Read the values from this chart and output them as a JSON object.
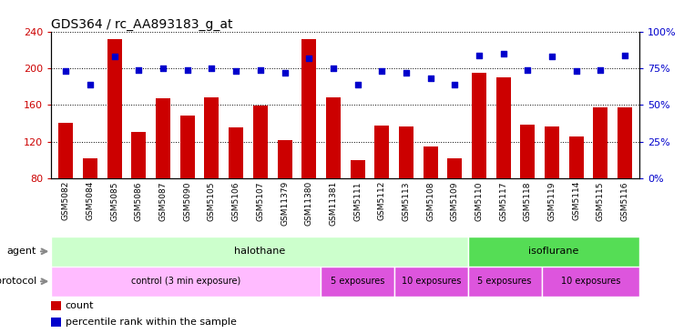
{
  "title": "GDS364 / rc_AA893183_g_at",
  "samples": [
    "GSM5082",
    "GSM5084",
    "GSM5085",
    "GSM5086",
    "GSM5087",
    "GSM5090",
    "GSM5105",
    "GSM5106",
    "GSM5107",
    "GSM11379",
    "GSM11380",
    "GSM11381",
    "GSM5111",
    "GSM5112",
    "GSM5113",
    "GSM5108",
    "GSM5109",
    "GSM5110",
    "GSM5117",
    "GSM5118",
    "GSM5119",
    "GSM5114",
    "GSM5115",
    "GSM5116"
  ],
  "counts": [
    140,
    102,
    232,
    130,
    167,
    148,
    168,
    135,
    159,
    122,
    232,
    168,
    100,
    137,
    136,
    115,
    102,
    195,
    190,
    138,
    136,
    126,
    157,
    157
  ],
  "percentiles": [
    73,
    64,
    83,
    74,
    75,
    74,
    75,
    73,
    74,
    72,
    82,
    75,
    64,
    73,
    72,
    68,
    64,
    84,
    85,
    74,
    83,
    73,
    74,
    84
  ],
  "bar_color": "#cc0000",
  "dot_color": "#0000cc",
  "ylim_left": [
    80,
    240
  ],
  "ylim_right": [
    0,
    100
  ],
  "yticks_left": [
    80,
    120,
    160,
    200,
    240
  ],
  "yticks_right": [
    0,
    25,
    50,
    75,
    100
  ],
  "agent_groups": [
    {
      "label": "halothane",
      "start": 0,
      "end": 17,
      "color": "#ccffcc"
    },
    {
      "label": "isoflurane",
      "start": 17,
      "end": 24,
      "color": "#55dd55"
    }
  ],
  "protocol_groups": [
    {
      "label": "control (3 min exposure)",
      "start": 0,
      "end": 11,
      "color": "#ffbbff"
    },
    {
      "label": "5 exposures",
      "start": 11,
      "end": 14,
      "color": "#ee66ee"
    },
    {
      "label": "10 exposures",
      "start": 14,
      "end": 17,
      "color": "#ee66ee"
    },
    {
      "label": "5 exposures",
      "start": 17,
      "end": 20,
      "color": "#ee66ee"
    },
    {
      "label": "10 exposures",
      "start": 20,
      "end": 24,
      "color": "#ee66ee"
    }
  ],
  "legend_count_label": "count",
  "legend_pct_label": "percentile rank within the sample",
  "plot_bg": "#ffffff",
  "agent_label": "agent",
  "protocol_label": "protocol"
}
